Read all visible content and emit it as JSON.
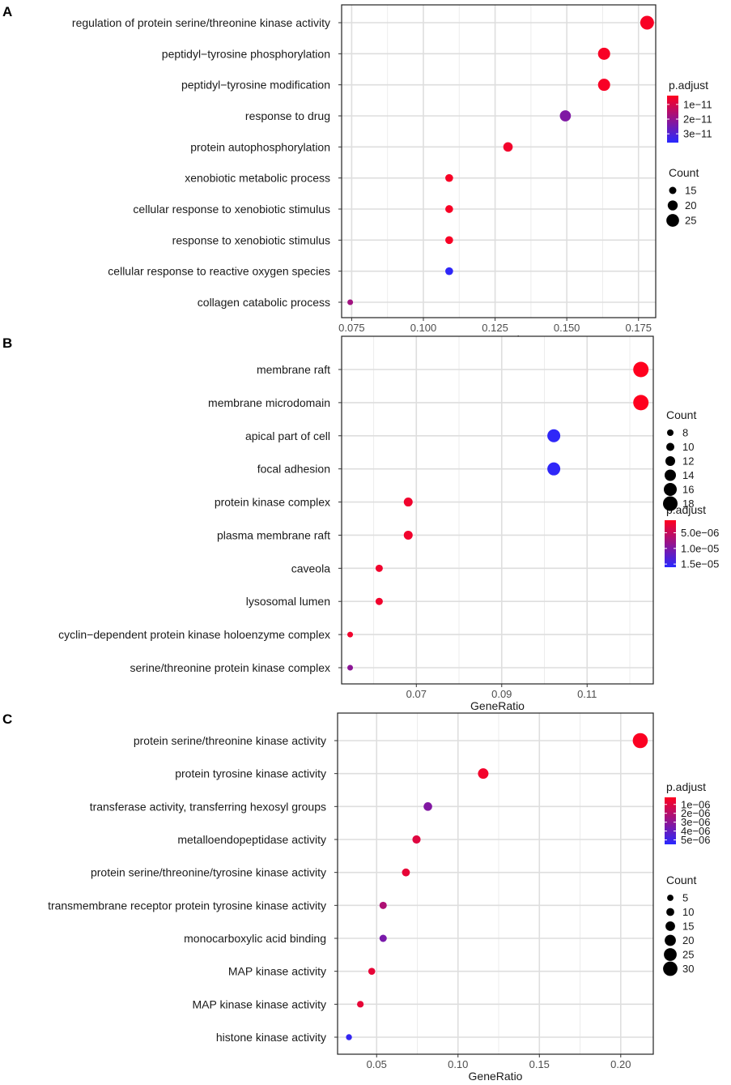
{
  "chart_data": [
    {
      "panel": "A",
      "type": "scatter",
      "xlabel": "GeneRatio",
      "xlim": [
        0.0715,
        0.181
      ],
      "xticks": [
        0.075,
        0.1,
        0.125,
        0.15,
        0.175
      ],
      "xtick_labels": [
        "0.075",
        "0.100",
        "0.125",
        "0.150",
        "0.175"
      ],
      "color_title": "p.adjust",
      "color_range": [
        4e-12,
        3.6e-11
      ],
      "color_ticks": [
        1e-11,
        2e-11,
        3e-11
      ],
      "color_tick_labels": [
        "1e−11",
        "2e−11",
        "3e−11"
      ],
      "size_title": "Count",
      "size_range": [
        12,
        27
      ],
      "size_breaks": [
        15,
        20,
        25
      ],
      "size_labels": [
        "15",
        "20",
        "25"
      ],
      "terms": [
        {
          "label": "regulation of protein serine/threonine kinase activity",
          "x": 0.178,
          "count": 27,
          "p": 5e-12
        },
        {
          "label": "peptidyl−tyrosine phosphorylation",
          "x": 0.163,
          "count": 24,
          "p": 5e-12
        },
        {
          "label": "peptidyl−tyrosine modification",
          "x": 0.163,
          "count": 24,
          "p": 5e-12
        },
        {
          "label": "response to drug",
          "x": 0.1495,
          "count": 22,
          "p": 2.3e-11
        },
        {
          "label": "protein autophosphorylation",
          "x": 0.1295,
          "count": 19,
          "p": 6e-12
        },
        {
          "label": "xenobiotic metabolic process",
          "x": 0.109,
          "count": 16,
          "p": 5e-12
        },
        {
          "label": "cellular response to xenobiotic stimulus",
          "x": 0.109,
          "count": 16,
          "p": 5e-12
        },
        {
          "label": "response to xenobiotic stimulus",
          "x": 0.109,
          "count": 16,
          "p": 5e-12
        },
        {
          "label": "cellular response to reactive oxygen species",
          "x": 0.109,
          "count": 16,
          "p": 3.5e-11
        },
        {
          "label": "collagen catabolic process",
          "x": 0.0745,
          "count": 11,
          "p": 1.8e-11
        }
      ]
    },
    {
      "panel": "B",
      "type": "scatter",
      "xlabel": "GeneRatio",
      "xlim": [
        0.0525,
        0.1255
      ],
      "xticks": [
        0.07,
        0.09,
        0.11
      ],
      "xtick_labels": [
        "0.07",
        "0.09",
        "0.11"
      ],
      "color_title": "p.adjust",
      "color_range": [
        1e-06,
        1.6e-05
      ],
      "color_ticks": [
        5e-06,
        1e-05,
        1.5e-05
      ],
      "color_tick_labels": [
        "5.0e−06",
        "1.0e−05",
        "1.5e−05"
      ],
      "size_title": "Count",
      "size_range": [
        7,
        19
      ],
      "size_breaks": [
        8,
        10,
        12,
        14,
        16,
        18
      ],
      "size_labels": [
        "8",
        "10",
        "12",
        "14",
        "16",
        "18"
      ],
      "terms": [
        {
          "label": "membrane raft",
          "x": 0.1226,
          "count": 19,
          "p": 1e-06
        },
        {
          "label": "membrane microdomain",
          "x": 0.1226,
          "count": 19,
          "p": 1e-06
        },
        {
          "label": "apical part of cell",
          "x": 0.1022,
          "count": 16,
          "p": 1.55e-05
        },
        {
          "label": "focal adhesion",
          "x": 0.1022,
          "count": 16,
          "p": 1.55e-05
        },
        {
          "label": "protein kinase complex",
          "x": 0.0681,
          "count": 11,
          "p": 2e-06
        },
        {
          "label": "plasma membrane raft",
          "x": 0.0681,
          "count": 11,
          "p": 2e-06
        },
        {
          "label": "caveola",
          "x": 0.0613,
          "count": 9,
          "p": 2e-06
        },
        {
          "label": "lysosomal lumen",
          "x": 0.0613,
          "count": 9,
          "p": 2e-06
        },
        {
          "label": "cyclin−dependent protein kinase holoenzyme complex",
          "x": 0.0545,
          "count": 7,
          "p": 2e-06
        },
        {
          "label": "serine/threonine protein kinase complex",
          "x": 0.0545,
          "count": 7,
          "p": 9e-06
        }
      ]
    },
    {
      "panel": "C",
      "type": "scatter",
      "xlabel": "GeneRatio",
      "xlim": [
        0.026,
        0.22
      ],
      "xticks": [
        0.05,
        0.1,
        0.15,
        0.2
      ],
      "xtick_labels": [
        "0.05",
        "0.10",
        "0.15",
        "0.20"
      ],
      "color_title": "p.adjust",
      "color_range": [
        2e-07,
        5.5e-06
      ],
      "color_ticks": [
        1e-06,
        2e-06,
        3e-06,
        4e-06,
        5e-06
      ],
      "color_tick_labels": [
        "1e−06",
        "2e−06",
        "3e−06",
        "4e−06",
        "5e−06"
      ],
      "size_title": "Count",
      "size_range": [
        3,
        33
      ],
      "size_breaks": [
        5,
        10,
        15,
        20,
        25,
        30
      ],
      "size_labels": [
        "5",
        "10",
        "15",
        "20",
        "25",
        "30"
      ],
      "terms": [
        {
          "label": "protein serine/threonine kinase activity",
          "x": 0.212,
          "count": 32,
          "p": 3e-07
        },
        {
          "label": "protein tyrosine kinase activity",
          "x": 0.1155,
          "count": 18,
          "p": 5e-07
        },
        {
          "label": "transferase activity, transferring hexosyl groups",
          "x": 0.0815,
          "count": 12,
          "p": 3.3e-06
        },
        {
          "label": "metalloendopeptidase activity",
          "x": 0.0745,
          "count": 11,
          "p": 1e-06
        },
        {
          "label": "protein serine/threonine/tyrosine kinase activity",
          "x": 0.068,
          "count": 10,
          "p": 8e-07
        },
        {
          "label": "transmembrane receptor protein tyrosine kinase activity",
          "x": 0.054,
          "count": 8,
          "p": 2.2e-06
        },
        {
          "label": "monocarboxylic acid binding",
          "x": 0.054,
          "count": 8,
          "p": 3.5e-06
        },
        {
          "label": "MAP kinase activity",
          "x": 0.047,
          "count": 7,
          "p": 8e-07
        },
        {
          "label": "MAP kinase kinase activity",
          "x": 0.04,
          "count": 6,
          "p": 8e-07
        },
        {
          "label": "histone kinase activity",
          "x": 0.033,
          "count": 4,
          "p": 5.2e-06
        }
      ]
    }
  ]
}
